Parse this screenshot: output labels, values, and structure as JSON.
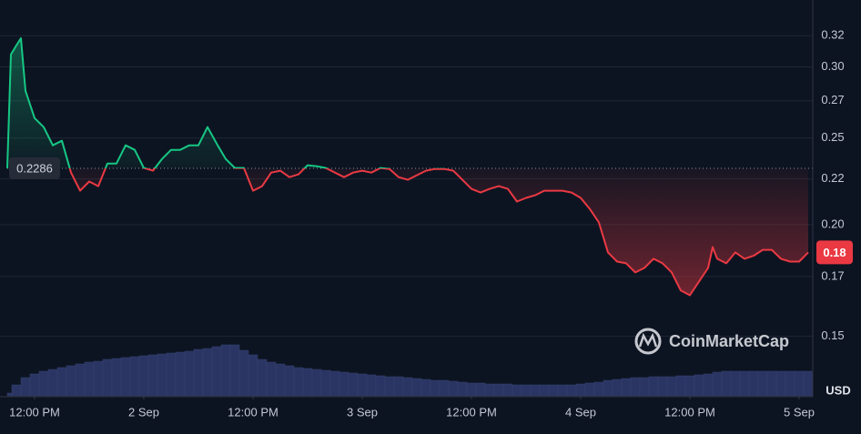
{
  "chart_data": {
    "type": "line",
    "x": [
      0,
      0.4,
      1,
      1.5,
      2,
      3,
      4,
      5,
      6,
      7,
      8,
      9,
      10,
      11,
      12,
      13,
      14,
      15,
      16,
      17,
      18,
      19,
      20,
      21,
      22,
      23,
      24,
      25,
      26,
      27,
      28,
      29,
      30,
      31,
      32,
      33,
      34,
      35,
      36,
      37,
      38,
      39,
      40,
      41,
      42,
      43,
      44,
      45,
      46,
      47,
      48,
      49,
      50,
      51,
      52,
      53,
      54,
      55,
      56,
      57,
      58,
      59,
      60,
      61,
      62,
      63,
      64,
      65,
      66,
      67,
      68,
      69,
      70,
      71,
      72,
      73,
      74,
      75,
      76,
      77,
      77.5,
      78,
      79,
      80,
      81,
      82,
      83,
      84,
      85,
      86,
      87,
      88
    ],
    "series": [
      {
        "color": "#16c784",
        "color_down": "#ea3943",
        "values": [
          0.2286,
          0.3055,
          0.3127,
          0.3185,
          0.2785,
          0.2598,
          0.2539,
          0.2424,
          0.2452,
          0.2261,
          0.2159,
          0.221,
          0.2184,
          0.2314,
          0.2314,
          0.2424,
          0.2396,
          0.2288,
          0.2272,
          0.2341,
          0.2396,
          0.2396,
          0.2424,
          0.2424,
          0.2539,
          0.2435,
          0.2341,
          0.2288,
          0.2288,
          0.2159,
          0.2184,
          0.2261,
          0.2272,
          0.2235,
          0.2251,
          0.2304,
          0.2298,
          0.2288,
          0.2261,
          0.2235,
          0.2261,
          0.2272,
          0.2261,
          0.2288,
          0.2282,
          0.2235,
          0.222,
          0.2246,
          0.2272,
          0.2282,
          0.2282,
          0.2272,
          0.222,
          0.2169,
          0.2149,
          0.2169,
          0.2184,
          0.2169,
          0.21,
          0.212,
          0.2134,
          0.2159,
          0.2159,
          0.2159,
          0.2149,
          0.212,
          0.2061,
          0.1991,
          0.1845,
          0.1802,
          0.1794,
          0.1753,
          0.1773,
          0.1815,
          0.1794,
          0.1753,
          0.1674,
          0.1654,
          0.1713,
          0.1773,
          0.187,
          0.1815,
          0.1794,
          0.1845,
          0.1815,
          0.1829,
          0.1857,
          0.1857,
          0.1815,
          0.1802,
          0.1802,
          0.1845
        ]
      }
    ],
    "baseline": 0.2286,
    "current": {
      "value": 0.1845,
      "label": "0.18"
    },
    "xlim": [
      0,
      88.5
    ],
    "xticks": [
      {
        "value": 3,
        "label": "12:00 PM"
      },
      {
        "value": 15,
        "label": "2 Sep"
      },
      {
        "value": 27,
        "label": "12:00 PM"
      },
      {
        "value": 39,
        "label": "3 Sep"
      },
      {
        "value": 51,
        "label": "12:00 PM"
      },
      {
        "value": 63,
        "label": "4 Sep"
      },
      {
        "value": 75,
        "label": "12:00 PM"
      },
      {
        "value": 87,
        "label": "5 Sep"
      }
    ],
    "ylim": [
      0.128,
      0.347
    ],
    "log": true,
    "grid": true,
    "yticks": [
      {
        "value": 0.149,
        "label": "0.15"
      },
      {
        "value": 0.1735,
        "label": "0.17"
      },
      {
        "value": 0.198,
        "label": "0.20"
      },
      {
        "value": 0.2225,
        "label": "0.22"
      },
      {
        "value": 0.247,
        "label": "0.25"
      },
      {
        "value": 0.2715,
        "label": "0.27"
      },
      {
        "value": 0.296,
        "label": "0.30"
      },
      {
        "value": 0.3205,
        "label": "0.32"
      }
    ],
    "y_unit": "USD",
    "watermark": "CoinMarketCap",
    "volume": {
      "color": "#2a3563",
      "lim": [
        0,
        100
      ],
      "x": [
        0,
        1,
        2,
        3,
        4,
        5,
        6,
        7,
        8,
        9,
        10,
        11,
        12,
        13,
        14,
        15,
        16,
        17,
        18,
        19,
        20,
        21,
        22,
        23,
        24,
        25,
        26,
        27,
        28,
        29,
        30,
        31,
        32,
        33,
        34,
        35,
        36,
        37,
        38,
        39,
        40,
        41,
        42,
        43,
        44,
        45,
        46,
        47,
        48,
        49,
        50,
        51,
        52,
        53,
        54,
        55,
        56,
        57,
        58,
        59,
        60,
        61,
        62,
        63,
        64,
        65,
        66,
        67,
        68,
        69,
        70,
        71,
        72,
        73,
        74,
        75,
        76,
        77,
        78,
        79,
        80,
        81,
        82,
        83,
        84,
        85,
        86,
        87,
        88
      ],
      "values": [
        3,
        12,
        20,
        24,
        27,
        29,
        31,
        33,
        35,
        37,
        38,
        40,
        41,
        42,
        43,
        44,
        45,
        46,
        47,
        48,
        49,
        51,
        52,
        54,
        56,
        56,
        50,
        45,
        40,
        37,
        35,
        33,
        31,
        30,
        29,
        28,
        27,
        26,
        25,
        24,
        23,
        22,
        21,
        21,
        20,
        19,
        18,
        17,
        17,
        16,
        15,
        14,
        14,
        13,
        13,
        13,
        12,
        12,
        12,
        12,
        12,
        12,
        12,
        13,
        14,
        15,
        17,
        18,
        19,
        20,
        20,
        21,
        21,
        21,
        22,
        22,
        23,
        24,
        26,
        27,
        27,
        27,
        27,
        27,
        27,
        27,
        27,
        27,
        27
      ]
    }
  }
}
